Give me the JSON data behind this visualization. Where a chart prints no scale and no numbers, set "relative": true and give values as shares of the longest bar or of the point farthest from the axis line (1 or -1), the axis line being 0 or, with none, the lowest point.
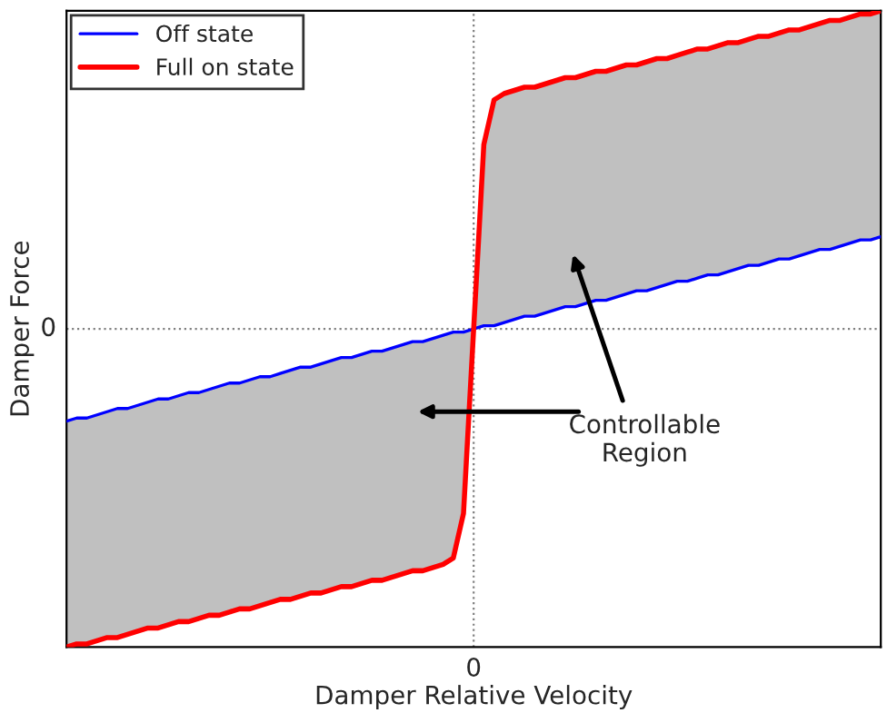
{
  "chart_data": {
    "type": "line",
    "relative": true,
    "xlabel": "Damper Relative Velocity",
    "ylabel": "Damper Force",
    "categories": [
      null,
      null,
      null,
      null,
      null,
      null,
      null,
      null,
      null,
      null,
      null,
      null,
      null,
      null,
      null,
      null,
      null,
      null,
      null,
      null,
      null,
      null,
      null,
      null,
      null,
      null,
      null,
      null,
      null,
      null,
      null,
      null,
      null,
      null,
      null,
      null,
      null,
      null,
      null,
      null,
      null,
      null,
      null,
      null,
      null,
      null,
      null,
      null,
      null,
      null,
      null,
      null,
      null,
      null,
      null,
      null,
      null,
      null,
      null,
      null,
      null,
      null,
      null,
      null,
      null,
      null,
      null,
      null,
      null,
      null,
      null,
      null,
      null,
      null,
      null,
      null,
      null,
      null,
      null,
      null,
      null
    ],
    "series": [
      {
        "name": "Off state",
        "color": "#0000ff",
        "values": [
          -0.29,
          -0.28,
          -0.28,
          -0.27,
          -0.26,
          -0.25,
          -0.25,
          -0.24,
          -0.23,
          -0.22,
          -0.22,
          -0.21,
          -0.2,
          -0.2,
          -0.19,
          -0.18,
          -0.17,
          -0.17,
          -0.16,
          -0.15,
          -0.15,
          -0.14,
          -0.13,
          -0.12,
          -0.12,
          -0.11,
          -0.1,
          -0.09,
          -0.09,
          -0.08,
          -0.07,
          -0.07,
          -0.06,
          -0.05,
          -0.04,
          -0.04,
          -0.03,
          -0.02,
          -0.01,
          -0.01,
          0,
          0.01,
          0.01,
          0.02,
          0.03,
          0.04,
          0.04,
          0.05,
          0.06,
          0.07,
          0.07,
          0.08,
          0.09,
          0.09,
          0.1,
          0.11,
          0.12,
          0.12,
          0.13,
          0.14,
          0.15,
          0.15,
          0.16,
          0.17,
          0.17,
          0.18,
          0.19,
          0.2,
          0.2,
          0.21,
          0.22,
          0.22,
          0.23,
          0.24,
          0.25,
          0.25,
          0.26,
          0.27,
          0.28,
          0.28,
          0.29
        ]
      },
      {
        "name": "Full on state",
        "color": "#ff0000",
        "values": [
          -1,
          -0.99,
          -0.99,
          -0.98,
          -0.97,
          -0.97,
          -0.96,
          -0.95,
          -0.94,
          -0.94,
          -0.93,
          -0.92,
          -0.92,
          -0.91,
          -0.9,
          -0.9,
          -0.89,
          -0.88,
          -0.88,
          -0.87,
          -0.86,
          -0.85,
          -0.85,
          -0.84,
          -0.83,
          -0.83,
          -0.82,
          -0.81,
          -0.81,
          -0.8,
          -0.79,
          -0.79,
          -0.78,
          -0.77,
          -0.76,
          -0.76,
          -0.75,
          -0.74,
          -0.72,
          -0.58,
          0,
          0.58,
          0.72,
          0.74,
          0.75,
          0.76,
          0.76,
          0.77,
          0.78,
          0.79,
          0.79,
          0.8,
          0.81,
          0.81,
          0.82,
          0.83,
          0.83,
          0.84,
          0.85,
          0.85,
          0.86,
          0.87,
          0.88,
          0.88,
          0.89,
          0.9,
          0.9,
          0.91,
          0.92,
          0.92,
          0.93,
          0.94,
          0.94,
          0.95,
          0.96,
          0.97,
          0.97,
          0.98,
          0.99,
          0.99,
          1
        ],
        "lower": [
          -1,
          -0.99,
          -0.99,
          -0.98,
          -0.97,
          -0.97,
          -0.96,
          -0.95,
          -0.94,
          -0.94,
          -0.93,
          -0.92,
          -0.92,
          -0.91,
          -0.9,
          -0.9,
          -0.89,
          -0.88,
          -0.88,
          -0.87,
          -0.86,
          -0.85,
          -0.85,
          -0.84,
          -0.83,
          -0.83,
          -0.82,
          -0.81,
          -0.81,
          -0.8,
          -0.79,
          -0.79,
          -0.78,
          -0.77,
          -0.76,
          -0.76,
          -0.75,
          -0.74,
          -0.72,
          -0.58,
          0,
          0.01,
          0.01,
          0.02,
          0.03,
          0.04,
          0.04,
          0.05,
          0.06,
          0.07,
          0.07,
          0.08,
          0.09,
          0.09,
          0.1,
          0.11,
          0.12,
          0.12,
          0.13,
          0.14,
          0.15,
          0.15,
          0.16,
          0.17,
          0.17,
          0.18,
          0.19,
          0.2,
          0.2,
          0.21,
          0.22,
          0.22,
          0.23,
          0.24,
          0.25,
          0.25,
          0.26,
          0.27,
          0.28,
          0.28,
          0.29
        ],
        "upper": [
          -0.29,
          -0.28,
          -0.28,
          -0.27,
          -0.26,
          -0.25,
          -0.25,
          -0.24,
          -0.23,
          -0.22,
          -0.22,
          -0.21,
          -0.2,
          -0.2,
          -0.19,
          -0.18,
          -0.17,
          -0.17,
          -0.16,
          -0.15,
          -0.15,
          -0.14,
          -0.13,
          -0.12,
          -0.12,
          -0.11,
          -0.1,
          -0.09,
          -0.09,
          -0.08,
          -0.07,
          -0.07,
          -0.06,
          -0.05,
          -0.04,
          -0.04,
          -0.03,
          -0.02,
          -0.01,
          -0.01,
          0,
          0.58,
          0.72,
          0.74,
          0.75,
          0.76,
          0.76,
          0.77,
          0.78,
          0.79,
          0.79,
          0.8,
          0.81,
          0.81,
          0.82,
          0.83,
          0.83,
          0.84,
          0.85,
          0.85,
          0.86,
          0.87,
          0.88,
          0.88,
          0.89,
          0.9,
          0.9,
          0.91,
          0.92,
          0.92,
          0.93,
          0.94,
          0.94,
          0.95,
          0.96,
          0.97,
          0.97,
          0.98,
          0.99,
          0.99,
          1
        ]
      }
    ],
    "ref_lines": [
      {
        "axis": "y",
        "value": 0,
        "color": "#808080",
        "line_style": "dotted"
      }
    ],
    "annotations": [
      "Controllable\nRegion",
      "0",
      "0"
    ],
    "legend": "top left"
  }
}
